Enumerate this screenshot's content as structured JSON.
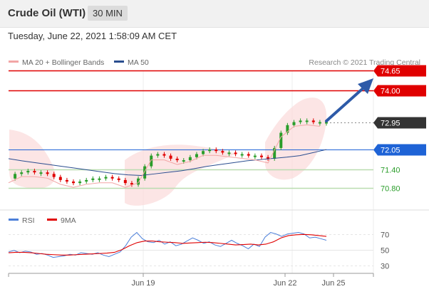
{
  "header": {
    "title": "Crude Oil (WTI)",
    "timeframe": "30 MIN"
  },
  "datetime": "Tuesday, June 22, 2021 1:58:09 AM CET",
  "legend": {
    "bollinger": "MA 20 + Bollinger Bands",
    "ma50": "MA 50",
    "copyright": "Research © 2021 Trading Central"
  },
  "rsi_legend": {
    "rsi": "RSI",
    "ma9": "9MA"
  },
  "colors": {
    "resistance": "#e00000",
    "support": "#2a9d2a",
    "pivot": "#1e63d6",
    "current": "#333333",
    "bollinger": "#f2a6a6",
    "ma50": "#2a4d8f",
    "arrow": "#2d5aa8",
    "up_candle": "#2a9d2a",
    "down_candle": "#e00000",
    "rsi": "#4c7fd9",
    "rsi_ma": "#e00000"
  },
  "chart_data": {
    "type": "line",
    "price_axis": {
      "ylim": [
        70.3,
        74.9
      ]
    },
    "levels": [
      {
        "label": "74.65",
        "value": 74.65,
        "kind": "resistance"
      },
      {
        "label": "74.00",
        "value": 74.0,
        "kind": "resistance"
      },
      {
        "label": "72.95",
        "value": 72.95,
        "kind": "current"
      },
      {
        "label": "72.05",
        "value": 72.05,
        "kind": "pivot"
      },
      {
        "label": "71.40",
        "value": 71.4,
        "kind": "support"
      },
      {
        "label": "70.80",
        "value": 70.8,
        "kind": "support"
      }
    ],
    "x_ticks": [
      "Jun 19",
      "Jun 22",
      "Jun 25"
    ],
    "price_series": [
      71.1,
      71.25,
      71.3,
      71.35,
      71.3,
      71.3,
      71.25,
      71.15,
      71.05,
      71.0,
      70.95,
      71.0,
      71.05,
      71.1,
      71.1,
      71.15,
      71.1,
      71.05,
      70.95,
      70.9,
      71.1,
      71.5,
      71.85,
      71.9,
      71.85,
      71.75,
      71.7,
      71.7,
      71.8,
      71.9,
      72.0,
      72.05,
      72.0,
      71.95,
      71.95,
      71.9,
      71.9,
      71.85,
      71.85,
      71.8,
      71.75,
      72.1,
      72.6,
      72.85,
      72.95,
      73.0,
      73.0,
      72.95,
      72.95,
      72.95
    ],
    "ma50_series": [
      71.75,
      71.68,
      71.62,
      71.56,
      71.5,
      71.44,
      71.38,
      71.32,
      71.26,
      71.22,
      71.2,
      71.25,
      71.3,
      71.35,
      71.42,
      71.5,
      71.56,
      71.62,
      71.68,
      71.72,
      71.76,
      71.8,
      71.85,
      71.95,
      72.05
    ],
    "rsi_axis": {
      "ticks": [
        70,
        50,
        30
      ],
      "ylim": [
        25,
        78
      ]
    },
    "rsi_series": [
      47,
      49,
      46,
      48,
      47,
      44,
      45,
      43,
      40,
      41,
      42,
      44,
      43,
      46,
      45,
      44,
      46,
      43,
      41,
      44,
      47,
      55,
      66,
      72,
      64,
      60,
      59,
      62,
      57,
      60,
      55,
      57,
      61,
      65,
      62,
      58,
      60,
      56,
      54,
      58,
      62,
      58,
      55,
      51,
      57,
      54,
      66,
      72,
      70,
      67,
      70,
      71,
      72,
      70,
      65,
      66,
      64,
      62
    ],
    "rsi_ma_series": [
      46,
      46.5,
      46.5,
      46,
      45,
      44,
      43.5,
      43,
      43,
      43.5,
      44,
      44.5,
      45,
      45.5,
      46.5,
      50,
      55,
      59,
      61,
      61,
      60,
      59.5,
      59,
      58,
      58.5,
      59,
      59.5,
      59,
      58,
      57,
      56,
      56.5,
      57,
      56,
      57,
      60,
      65,
      68,
      69,
      69.5,
      69,
      68,
      67
    ]
  }
}
